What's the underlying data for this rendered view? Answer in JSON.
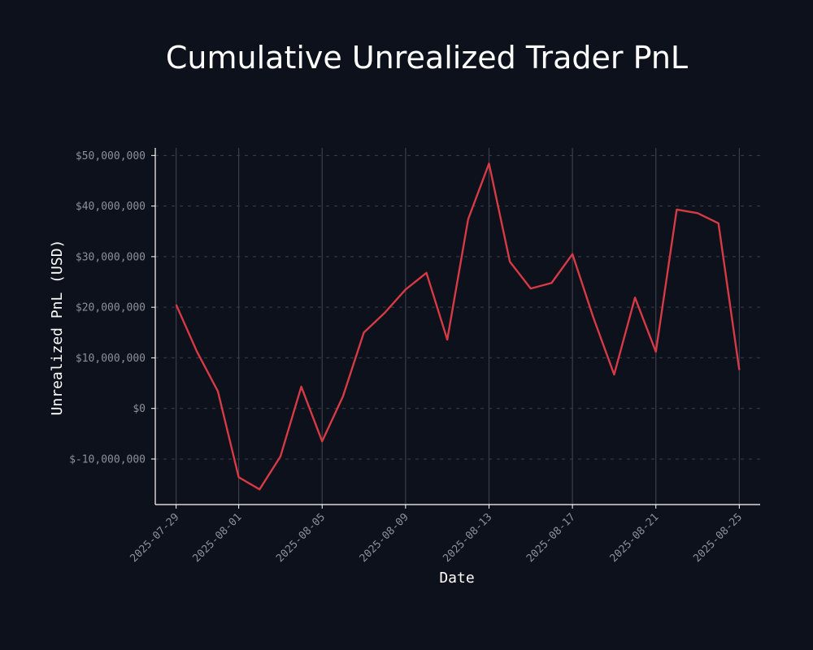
{
  "chart_data": {
    "type": "line",
    "title": "Cumulative Unrealized Trader PnL",
    "xlabel": "Date",
    "ylabel": "Unrealized PnL (USD)",
    "x_ticks": [
      "2025-07-29",
      "2025-08-01",
      "2025-08-05",
      "2025-08-09",
      "2025-08-13",
      "2025-08-17",
      "2025-08-21",
      "2025-08-25"
    ],
    "y_ticks": [
      -10000000,
      0,
      10000000,
      20000000,
      30000000,
      40000000,
      50000000
    ],
    "y_tick_labels": [
      "$-10,000,000",
      "$0",
      "$10,000,000",
      "$20,000,000",
      "$30,000,000",
      "$40,000,000",
      "$50,000,000"
    ],
    "xlim": [
      "2025-07-28",
      "2025-08-26"
    ],
    "ylim": [
      -19000000,
      51500000
    ],
    "grid": true,
    "series": [
      {
        "color": "#d63a45",
        "x": [
          "2025-07-29",
          "2025-07-30",
          "2025-07-31",
          "2025-08-01",
          "2025-08-02",
          "2025-08-03",
          "2025-08-04",
          "2025-08-05",
          "2025-08-06",
          "2025-08-07",
          "2025-08-08",
          "2025-08-09",
          "2025-08-10",
          "2025-08-11",
          "2025-08-12",
          "2025-08-13",
          "2025-08-14",
          "2025-08-15",
          "2025-08-16",
          "2025-08-17",
          "2025-08-18",
          "2025-08-19",
          "2025-08-20",
          "2025-08-21",
          "2025-08-22",
          "2025-08-23",
          "2025-08-24",
          "2025-08-25"
        ],
        "values": [
          20500000,
          11200000,
          3400000,
          -13600000,
          -16000000,
          -9500000,
          4300000,
          -6500000,
          2400000,
          15000000,
          18900000,
          23500000,
          26800000,
          13600000,
          37400000,
          48400000,
          29000000,
          23700000,
          24800000,
          30500000,
          18000000,
          6700000,
          21900000,
          11200000,
          39300000,
          38600000,
          36600000,
          7600000
        ]
      }
    ]
  }
}
